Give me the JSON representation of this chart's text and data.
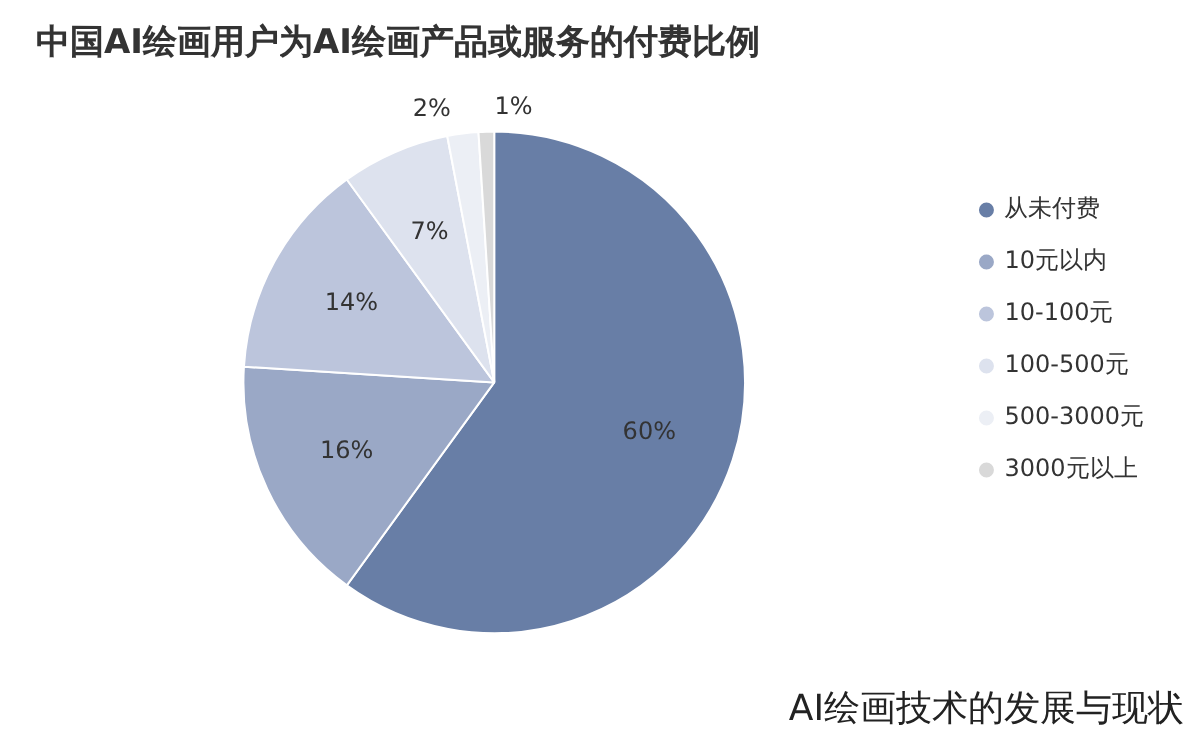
{
  "chart_data": {
    "type": "pie",
    "title": "中国AI绘画用户为AI绘画产品或服务的付费比例",
    "categories": [
      "从未付费",
      "10元以内",
      "10-100元",
      "100-500元",
      "500-3000元",
      "3000元以上"
    ],
    "values": [
      60,
      16,
      14,
      7,
      2,
      1
    ],
    "value_labels": [
      "60%",
      "16%",
      "14%",
      "7%",
      "2%",
      "1%"
    ],
    "colors": [
      "#687ea6",
      "#9aa8c6",
      "#bcc5dc",
      "#dde2ee",
      "#eceff5",
      "#d9d9d9"
    ],
    "legend": "right",
    "annotations": [
      "AI绘画技术的发展与现状"
    ]
  }
}
